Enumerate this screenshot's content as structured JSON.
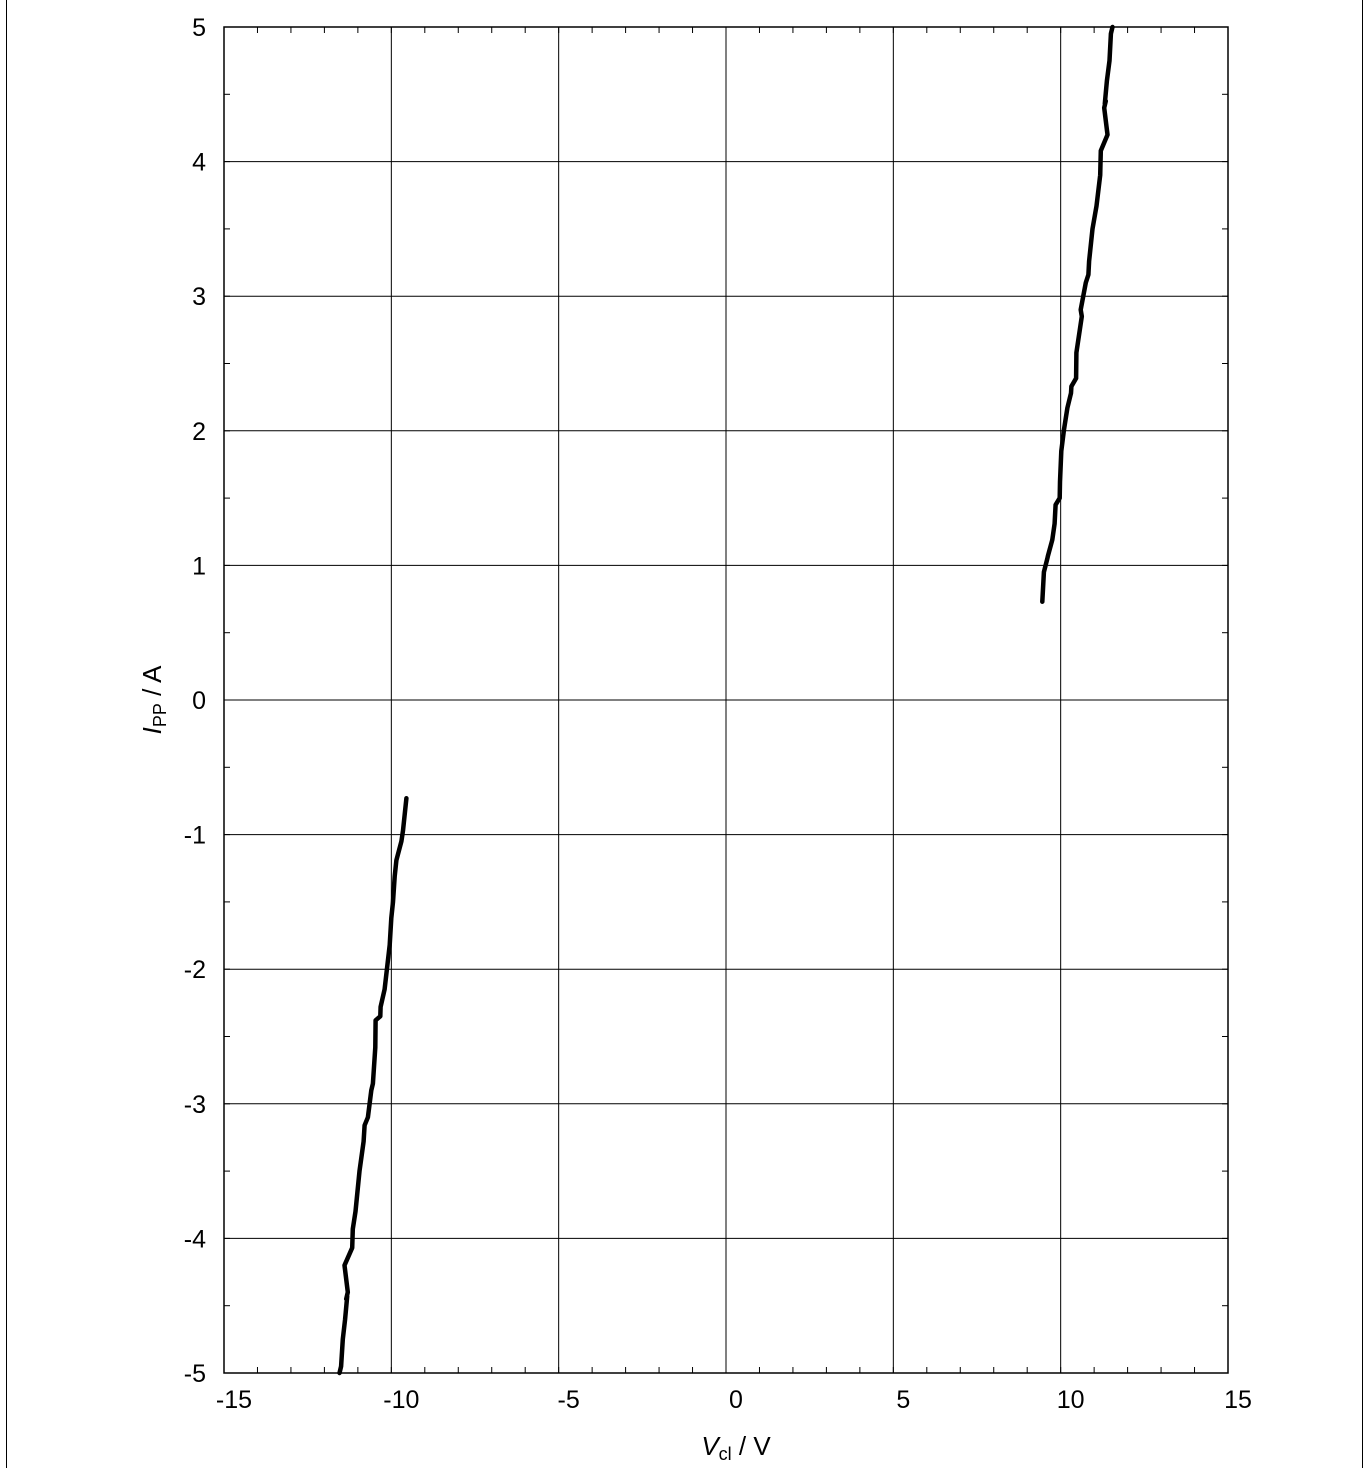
{
  "chart_data": {
    "type": "line",
    "title": "",
    "xlabel": {
      "main": "V",
      "sub": "cl",
      "unit": " / V"
    },
    "ylabel": {
      "main": "I",
      "sub": "PP",
      "unit": " / A"
    },
    "xlim": [
      -15,
      15
    ],
    "ylim": [
      -5,
      5
    ],
    "x_ticks": [
      -15,
      -10,
      -5,
      0,
      5,
      10,
      15
    ],
    "y_ticks": [
      -5,
      -4,
      -3,
      -2,
      -1,
      0,
      1,
      2,
      3,
      4,
      5
    ],
    "x_minor_step": 1,
    "y_minor_step": 0.5,
    "grid": true,
    "series": [
      {
        "x": [
          9.45,
          9.5,
          9.6,
          9.62,
          9.75,
          9.82,
          9.85,
          9.97,
          9.98,
          10.02,
          10.1,
          10.2,
          10.31,
          10.32,
          10.46,
          10.47,
          10.63,
          10.6,
          10.75,
          10.83,
          10.85,
          10.95,
          11.07,
          11.18,
          11.2,
          11.4,
          11.3,
          11.35,
          11.32,
          11.38,
          11.46,
          11.5,
          11.55
        ],
        "y": [
          0.73,
          0.95,
          1.05,
          1.07,
          1.19,
          1.31,
          1.45,
          1.5,
          1.62,
          1.85,
          2.01,
          2.17,
          2.28,
          2.33,
          2.39,
          2.58,
          2.85,
          2.9,
          3.1,
          3.16,
          3.26,
          3.5,
          3.67,
          3.9,
          4.08,
          4.2,
          4.4,
          4.45,
          4.43,
          4.6,
          4.75,
          4.95,
          5.0
        ]
      },
      {
        "x": [
          -9.55,
          -9.65,
          -9.7,
          -9.85,
          -9.9,
          -9.95,
          -10.0,
          -10.05,
          -10.2,
          -10.32,
          -10.33,
          -10.47,
          -10.48,
          -10.55,
          -10.6,
          -10.7,
          -10.8,
          -10.83,
          -10.95,
          -11.07,
          -11.15,
          -11.17,
          -11.4,
          -11.3,
          -11.35,
          -11.32,
          -11.38,
          -11.45,
          -11.5,
          -11.55
        ],
        "y": [
          -0.73,
          -0.97,
          -1.05,
          -1.19,
          -1.31,
          -1.5,
          -1.62,
          -1.82,
          -2.15,
          -2.28,
          -2.35,
          -2.38,
          -2.58,
          -2.85,
          -2.9,
          -3.1,
          -3.16,
          -3.28,
          -3.5,
          -3.8,
          -3.93,
          -4.07,
          -4.2,
          -4.4,
          -4.45,
          -4.43,
          -4.6,
          -4.75,
          -4.95,
          -5.0
        ]
      }
    ]
  }
}
